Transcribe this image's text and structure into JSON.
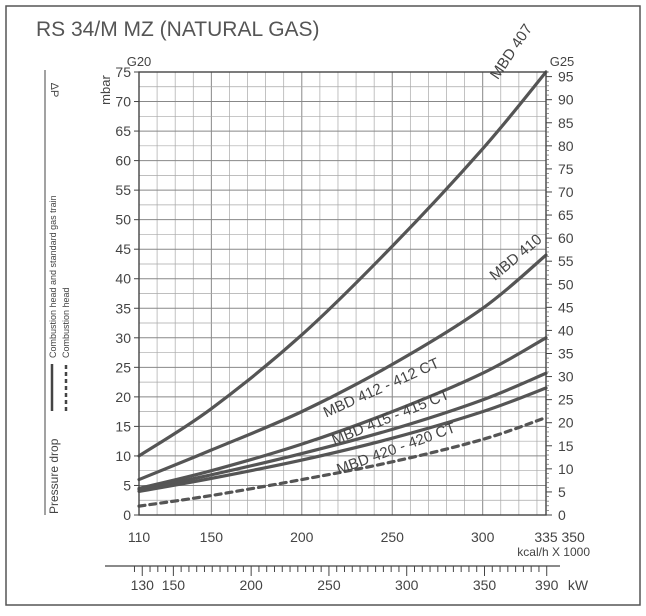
{
  "chart_data": {
    "type": "line",
    "title": "RS 34/M MZ (NATURAL GAS)",
    "gas_labels": {
      "left": "G20",
      "right": "G25"
    },
    "y_left": {
      "label": "mbar",
      "symbol": "ΔP",
      "min": 0,
      "max": 75,
      "ticks": [
        0,
        5,
        10,
        15,
        20,
        25,
        30,
        35,
        40,
        45,
        50,
        55,
        60,
        65,
        70,
        75
      ],
      "tick_labels": [
        "0",
        "5",
        "10",
        "15",
        "20",
        "25",
        "30",
        "35",
        "40",
        "45",
        "50",
        "55",
        "60",
        "65",
        "70",
        "75"
      ]
    },
    "y_right": {
      "min": 0,
      "max": 96,
      "ticks": [
        0,
        5,
        10,
        15,
        20,
        25,
        30,
        35,
        40,
        45,
        50,
        55,
        60,
        65,
        70,
        75,
        80,
        85,
        90,
        95
      ],
      "tick_labels": [
        "0",
        "5",
        "10",
        "15",
        "20",
        "25",
        "30",
        "35",
        "40",
        "45",
        "50",
        "55",
        "60",
        "65",
        "70",
        "75",
        "80",
        "85",
        "90",
        "95"
      ]
    },
    "x_kcal": {
      "label": "kcal/h X 1000",
      "min": 110,
      "max": 335,
      "ticks": [
        110,
        150,
        200,
        250,
        300,
        335
      ],
      "tick_labels": [
        "110",
        "150",
        "200",
        "250",
        "300",
        "335"
      ],
      "extra_label": "350"
    },
    "x_kw": {
      "label": "kW",
      "ticks": [
        130,
        150,
        200,
        250,
        300,
        350,
        390
      ],
      "tick_labels": [
        "130",
        "150",
        "200",
        "250",
        "300",
        "350",
        "390"
      ]
    },
    "legend": {
      "axis_caption": "Pressure drop",
      "solid": "Combustion head and standard gas train",
      "dashed": "Combustion head"
    },
    "grid": true,
    "series": [
      {
        "name": "MBD 407",
        "style": "solid",
        "x": [
          110,
          150,
          200,
          250,
          300,
          335
        ],
        "y": [
          10.0,
          18.0,
          30.5,
          45.5,
          62.0,
          75.0
        ]
      },
      {
        "name": "MBD 410",
        "style": "solid",
        "x": [
          110,
          150,
          200,
          250,
          300,
          335
        ],
        "y": [
          6.0,
          11.0,
          17.5,
          25.5,
          35.0,
          44.0
        ]
      },
      {
        "name": "MBD 412 - 412 CT",
        "style": "solid",
        "x": [
          110,
          150,
          200,
          250,
          300,
          335
        ],
        "y": [
          4.5,
          7.5,
          12.0,
          17.5,
          24.0,
          30.0
        ]
      },
      {
        "name": "MBD 415 - 415 CT",
        "style": "solid",
        "x": [
          110,
          150,
          200,
          250,
          300,
          335
        ],
        "y": [
          4.3,
          6.8,
          10.4,
          14.5,
          19.5,
          24.0
        ]
      },
      {
        "name": "",
        "style": "solid",
        "x": [
          110,
          150,
          200,
          250,
          300,
          335
        ],
        "y": [
          4.0,
          6.2,
          9.3,
          13.0,
          17.5,
          21.5
        ]
      },
      {
        "name": "MBD 420 - 420 CT",
        "style": "dashed",
        "x": [
          110,
          150,
          200,
          250,
          300,
          335
        ],
        "y": [
          1.5,
          3.3,
          6.0,
          9.0,
          12.8,
          16.5
        ]
      }
    ]
  }
}
